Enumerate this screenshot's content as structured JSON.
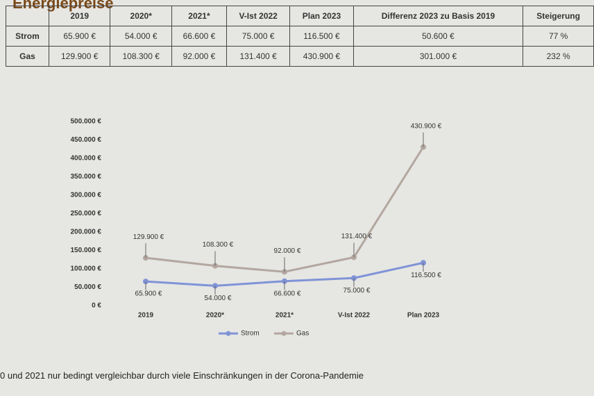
{
  "title": "Energiepreise",
  "table": {
    "header": [
      "2019",
      "2020*",
      "2021*",
      "V-Ist 2022",
      "Plan 2023",
      "Differenz 2023 zu Basis 2019",
      "Steigerung"
    ],
    "rows": [
      [
        "Strom",
        "65.900 €",
        "54.000 €",
        "66.600 €",
        "75.000 €",
        "116.500 €",
        "50.600 €",
        "77 %"
      ],
      [
        "Gas",
        "129.900 €",
        "108.300 €",
        "92.000 €",
        "131.400 €",
        "430.900 €",
        "301.000 €",
        "232 %"
      ]
    ]
  },
  "chart_data": {
    "type": "line",
    "categories": [
      "2019",
      "2020*",
      "2021*",
      "V-Ist 2022",
      "Plan 2023"
    ],
    "series": [
      {
        "name": "Strom",
        "color": "#7f93d6",
        "values": [
          65900,
          54000,
          66600,
          75000,
          116500
        ],
        "value_labels": [
          "65.900 €",
          "54.000 €",
          "66.600 €",
          "75.000 €",
          "116.500 €"
        ]
      },
      {
        "name": "Gas",
        "color": "#b3a79f",
        "values": [
          129900,
          108300,
          92000,
          131400,
          430900
        ],
        "value_labels": [
          "129.900 €",
          "108.300 €",
          "92.000 €",
          "131.400 €",
          "430.900 €"
        ]
      }
    ],
    "ylim": [
      0,
      500000
    ],
    "yticks": [
      {
        "value": 0,
        "label": "0 €"
      },
      {
        "value": 50000,
        "label": "50.000 €"
      },
      {
        "value": 100000,
        "label": "100.000 €"
      },
      {
        "value": 150000,
        "label": "150.000 €"
      },
      {
        "value": 200000,
        "label": "200.000 €"
      },
      {
        "value": 250000,
        "label": "250.000 €"
      },
      {
        "value": 300000,
        "label": "300.000 €"
      },
      {
        "value": 350000,
        "label": "350.000 €"
      },
      {
        "value": 400000,
        "label": "400.000 €"
      },
      {
        "value": 450000,
        "label": "450.000 €"
      },
      {
        "value": 500000,
        "label": "500.000 €"
      }
    ],
    "grid": false,
    "legend": "bottom"
  },
  "footnote": "0 und 2021 nur bedingt vergleichbar durch viele Einschränkungen in der Corona-Pandemie"
}
